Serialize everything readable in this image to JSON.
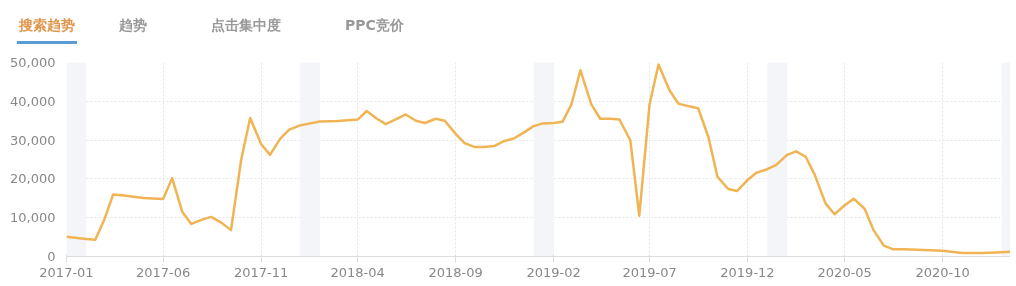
{
  "chart_data": {
    "type": "line",
    "title": "搜索趋势",
    "annotations": [
      "趋势",
      "点击集中度",
      "PPC竞价"
    ],
    "x": [
      "2017-01",
      "2017-02",
      "2017-02-15",
      "2017-03",
      "2017-03-15",
      "2017-04",
      "2017-05",
      "2017-06",
      "2017-06-15",
      "2017-07",
      "2017-07-15",
      "2017-08",
      "2017-08-15",
      "2017-09",
      "2017-09-15",
      "2017-10",
      "2017-10-15",
      "2017-11",
      "2017-11-15",
      "2017-12",
      "2017-12-15",
      "2018-01",
      "2018-02",
      "2018-03",
      "2018-04",
      "2018-04-15",
      "2018-05",
      "2018-05-15",
      "2018-06",
      "2018-06-15",
      "2018-07",
      "2018-07-15",
      "2018-08",
      "2018-08-15",
      "2018-09",
      "2018-09-15",
      "2018-10",
      "2018-10-15",
      "2018-11",
      "2018-11-15",
      "2018-12",
      "2018-12-15",
      "2019-01",
      "2019-01-15",
      "2019-02",
      "2019-02-15",
      "2019-03",
      "2019-03-15",
      "2019-04",
      "2019-04-15",
      "2019-05",
      "2019-05-15",
      "2019-06",
      "2019-06-15",
      "2019-07",
      "2019-07-15",
      "2019-08",
      "2019-08-15",
      "2019-09",
      "2019-09-15",
      "2019-10",
      "2019-10-15",
      "2019-11",
      "2019-11-15",
      "2019-12",
      "2019-12-15",
      "2020-01",
      "2020-01-15",
      "2020-02",
      "2020-02-15",
      "2020-03",
      "2020-03-15",
      "2020-04",
      "2020-04-15",
      "2020-05",
      "2020-05-15",
      "2020-06",
      "2020-06-15",
      "2020-07",
      "2020-07-15",
      "2020-08",
      "2020-09",
      "2020-10",
      "2020-11",
      "2020-12",
      "2021-01",
      "2021-01-15"
    ],
    "series": [
      {
        "color": "#f0b454",
        "values": [
          5100,
          4500,
          4300,
          9500,
          16000,
          15700,
          15100,
          14800,
          20200,
          11500,
          8400,
          9500,
          10200,
          8600,
          6800,
          25000,
          35700,
          29000,
          26200,
          30400,
          32700,
          33800,
          34800,
          34900,
          35300,
          37500,
          35500,
          34100,
          35500,
          36600,
          35000,
          34400,
          35500,
          35000,
          31600,
          29200,
          28200,
          28200,
          28500,
          29700,
          30400,
          31800,
          33600,
          34300,
          34400,
          34700,
          39200,
          48000,
          39200,
          35500,
          35500,
          35300,
          29900,
          10500,
          39200,
          49500,
          42900,
          39400,
          38700,
          38200,
          30800,
          20600,
          17400,
          16900,
          19700,
          21600,
          22500,
          23600,
          26200,
          27100,
          25700,
          21100,
          13700,
          10900,
          13200,
          14900,
          12300,
          6800,
          2800,
          1900,
          1900,
          1700,
          1500,
          900,
          900,
          1100,
          1200
        ]
      }
    ],
    "xlim": [
      "2017-01",
      "2021-01-15"
    ],
    "xticks": [
      "2017-01",
      "2017-06",
      "2017-11",
      "2018-04",
      "2018-09",
      "2019-02",
      "2019-07",
      "2019-12",
      "2020-05",
      "2020-10"
    ],
    "ylim": [
      0,
      50000
    ],
    "yticks": [
      0,
      {
        "value": 10000,
        "label": "10,000"
      },
      {
        "value": 20000,
        "label": "20,000"
      },
      {
        "value": 30000,
        "label": "30,000"
      },
      {
        "value": 40000,
        "label": "40,000"
      },
      {
        "value": 50000,
        "label": "50,000"
      }
    ],
    "bands": [
      {
        "axis": "x",
        "from": "2017-01",
        "to": "2017-02",
        "color": "#f3f5f9"
      },
      {
        "axis": "x",
        "from": "2018-01",
        "to": "2018-02",
        "color": "#f3f5f9"
      },
      {
        "axis": "x",
        "from": "2019-01",
        "to": "2019-02",
        "color": "#f3f5f9"
      },
      {
        "axis": "x",
        "from": "2020-01",
        "to": "2020-02",
        "color": "#f3f5f9"
      },
      {
        "axis": "x",
        "from": "2021-01",
        "to": "2021-02",
        "color": "#f3f5f9"
      }
    ],
    "grid": true,
    "marker": "none",
    "line_style": "solid"
  }
}
